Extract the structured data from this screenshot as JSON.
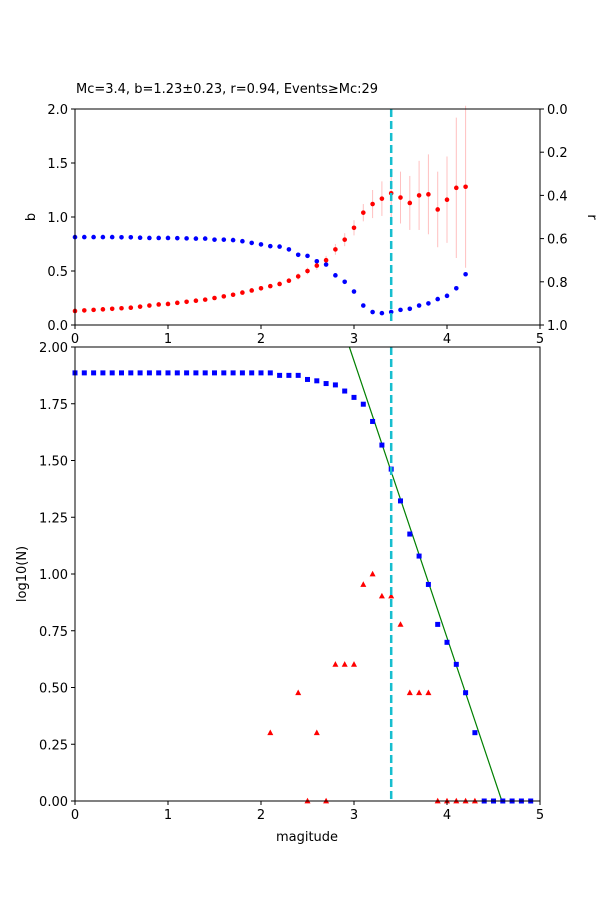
{
  "figure_title": "Mc=3.4, b=1.23±0.23, r=0.94, Events≥Mc:29",
  "colors": {
    "b_series": "#ff0000",
    "r_series": "#0000ff",
    "errorbar": "#ffc0c0",
    "mc_line": "#17becf",
    "cum_series": "#0000ff",
    "noncum_series": "#ff0000",
    "fit_line": "#008000"
  },
  "chart_data": [
    {
      "type": "scatter",
      "xlabel": "",
      "ylabel": "b",
      "ylabel_right": "r",
      "xlim": [
        0,
        5
      ],
      "ylim": [
        0,
        2.0
      ],
      "ylim_right": [
        1.0,
        0.0
      ],
      "xticks": [
        "0",
        "1",
        "2",
        "3",
        "4",
        "5"
      ],
      "yticks": [
        "0.0",
        "0.5",
        "1.0",
        "1.5",
        "2.0"
      ],
      "yticks_right": [
        "0.0",
        "0.2",
        "0.4",
        "0.6",
        "0.8",
        "1.0"
      ],
      "mc_vline": 3.4,
      "series": [
        {
          "role": "b-value",
          "axis": "left",
          "x": [
            0.0,
            0.1,
            0.2,
            0.3,
            0.4,
            0.5,
            0.6,
            0.7,
            0.8,
            0.9,
            1.0,
            1.1,
            1.2,
            1.3,
            1.4,
            1.5,
            1.6,
            1.7,
            1.8,
            1.9,
            2.0,
            2.1,
            2.2,
            2.3,
            2.4,
            2.5,
            2.6,
            2.7,
            2.8,
            2.9,
            3.0,
            3.1,
            3.2,
            3.3,
            3.4,
            3.5,
            3.6,
            3.7,
            3.8,
            3.9,
            4.0,
            4.1,
            4.2
          ],
          "y": [
            0.13,
            0.135,
            0.14,
            0.145,
            0.15,
            0.155,
            0.16,
            0.17,
            0.18,
            0.19,
            0.195,
            0.205,
            0.215,
            0.225,
            0.235,
            0.25,
            0.265,
            0.28,
            0.3,
            0.32,
            0.34,
            0.36,
            0.38,
            0.41,
            0.45,
            0.5,
            0.55,
            0.6,
            0.7,
            0.79,
            0.9,
            1.04,
            1.12,
            1.17,
            1.22,
            1.18,
            1.13,
            1.2,
            1.21,
            1.07,
            1.16,
            1.27,
            1.28
          ],
          "err": [
            0.01,
            0.01,
            0.01,
            0.01,
            0.01,
            0.01,
            0.01,
            0.01,
            0.01,
            0.01,
            0.01,
            0.01,
            0.01,
            0.01,
            0.01,
            0.01,
            0.01,
            0.01,
            0.01,
            0.02,
            0.02,
            0.02,
            0.02,
            0.02,
            0.03,
            0.03,
            0.04,
            0.04,
            0.05,
            0.06,
            0.07,
            0.08,
            0.13,
            0.16,
            0.23,
            0.24,
            0.25,
            0.32,
            0.37,
            0.35,
            0.4,
            0.65,
            0.75
          ]
        },
        {
          "role": "r-value",
          "axis": "right",
          "x": [
            0.0,
            0.1,
            0.2,
            0.3,
            0.4,
            0.5,
            0.6,
            0.7,
            0.8,
            0.9,
            1.0,
            1.1,
            1.2,
            1.3,
            1.4,
            1.5,
            1.6,
            1.7,
            1.8,
            1.9,
            2.0,
            2.1,
            2.2,
            2.3,
            2.4,
            2.5,
            2.6,
            2.7,
            2.8,
            2.9,
            3.0,
            3.1,
            3.2,
            3.3,
            3.4,
            3.5,
            3.6,
            3.7,
            3.8,
            3.9,
            4.0,
            4.1,
            4.2
          ],
          "y": [
            0.593,
            0.593,
            0.593,
            0.593,
            0.593,
            0.594,
            0.594,
            0.596,
            0.597,
            0.597,
            0.597,
            0.598,
            0.599,
            0.6,
            0.6,
            0.605,
            0.605,
            0.607,
            0.612,
            0.62,
            0.627,
            0.635,
            0.637,
            0.65,
            0.675,
            0.68,
            0.705,
            0.72,
            0.77,
            0.8,
            0.845,
            0.91,
            0.94,
            0.945,
            0.94,
            0.93,
            0.925,
            0.91,
            0.9,
            0.88,
            0.865,
            0.83,
            0.765
          ]
        }
      ]
    },
    {
      "type": "scatter",
      "xlabel": "magitude",
      "ylabel": "log10(N)",
      "xlim": [
        0,
        5
      ],
      "ylim": [
        0,
        2.0
      ],
      "xticks": [
        "0",
        "1",
        "2",
        "3",
        "4",
        "5"
      ],
      "yticks": [
        "0.00",
        "0.25",
        "0.50",
        "0.75",
        "1.00",
        "1.25",
        "1.50",
        "1.75",
        "2.00"
      ],
      "mc_vline": 3.4,
      "fit_line": {
        "x": [
          2.95,
          4.59
        ],
        "y": [
          2.0,
          0.0
        ]
      },
      "series": [
        {
          "role": "cumulative",
          "marker": "square",
          "x": [
            0.0,
            0.1,
            0.2,
            0.3,
            0.4,
            0.5,
            0.6,
            0.7,
            0.8,
            0.9,
            1.0,
            1.1,
            1.2,
            1.3,
            1.4,
            1.5,
            1.6,
            1.7,
            1.8,
            1.9,
            2.0,
            2.1,
            2.2,
            2.3,
            2.4,
            2.5,
            2.6,
            2.7,
            2.8,
            2.9,
            3.0,
            3.1,
            3.2,
            3.3,
            3.4,
            3.5,
            3.6,
            3.7,
            3.8,
            3.9,
            4.0,
            4.1,
            4.2,
            4.3,
            4.4,
            4.5,
            4.6,
            4.7,
            4.8,
            4.9
          ],
          "y": [
            1.886,
            1.886,
            1.886,
            1.886,
            1.886,
            1.886,
            1.886,
            1.886,
            1.886,
            1.886,
            1.886,
            1.886,
            1.886,
            1.886,
            1.886,
            1.886,
            1.886,
            1.886,
            1.886,
            1.886,
            1.886,
            1.886,
            1.875,
            1.875,
            1.875,
            1.857,
            1.851,
            1.839,
            1.833,
            1.806,
            1.778,
            1.748,
            1.672,
            1.568,
            1.462,
            1.322,
            1.176,
            1.079,
            0.954,
            0.778,
            0.699,
            0.602,
            0.477,
            0.301,
            0.0,
            0.0,
            0.0,
            0.0,
            0.0,
            0.0
          ]
        },
        {
          "role": "non-cumulative",
          "marker": "triangle",
          "x": [
            2.1,
            2.4,
            2.5,
            2.6,
            2.7,
            2.8,
            2.9,
            3.0,
            3.1,
            3.2,
            3.3,
            3.4,
            3.5,
            3.6,
            3.7,
            3.8,
            3.9,
            4.0,
            4.1,
            4.2,
            4.3
          ],
          "y": [
            0.301,
            0.477,
            0.0,
            0.301,
            0.0,
            0.602,
            0.602,
            0.602,
            0.954,
            1.0,
            0.903,
            0.903,
            0.778,
            0.477,
            0.477,
            0.477,
            0.0,
            0.0,
            0.0,
            0.0,
            0.0
          ]
        }
      ]
    }
  ]
}
